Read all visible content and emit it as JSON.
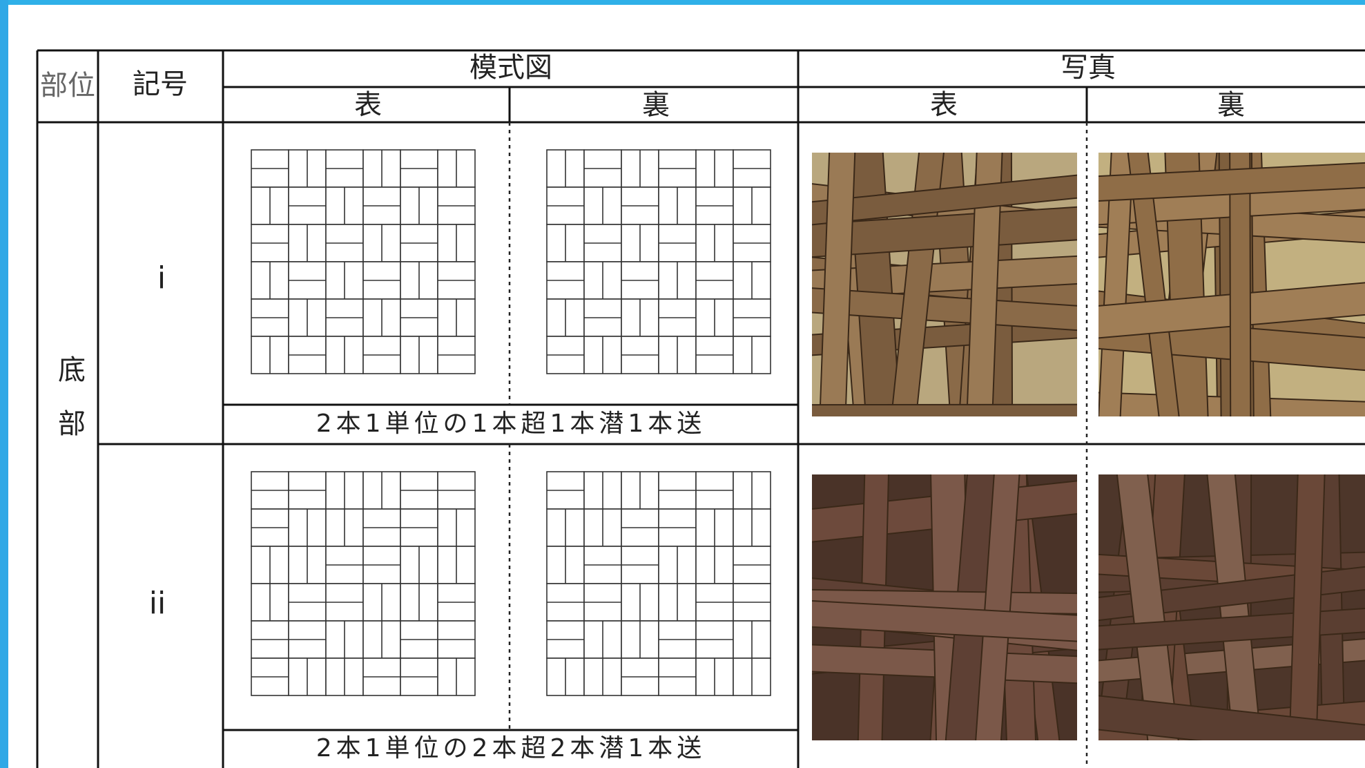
{
  "header": {
    "part": "部位",
    "symbol": "記号",
    "diagram": "模式図",
    "photo": "写真",
    "diagram_front": "表",
    "diagram_back": "裏",
    "photo_front": "表",
    "photo_back": "裏"
  },
  "part_label": "底部",
  "rows": [
    {
      "symbol": "i",
      "caption": "2本1単位の1本超1本潜1本送"
    },
    {
      "symbol": "ii",
      "caption": "2本1単位の2本超2本潜1本送"
    }
  ]
}
